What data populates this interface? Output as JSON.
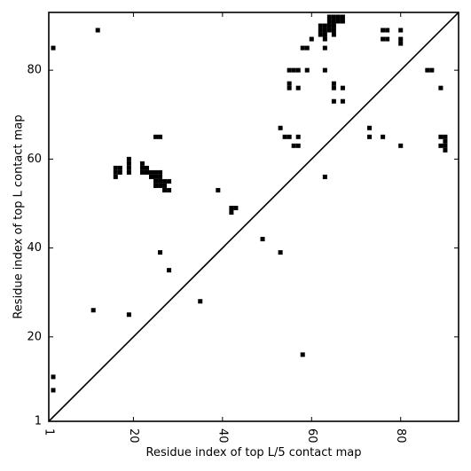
{
  "chart_data": {
    "type": "heatmap",
    "title": "",
    "xlabel": "Residue index of top L/5 contact map",
    "ylabel": "Residue index of top L contact map",
    "xlim": [
      1,
      93
    ],
    "ylim": [
      1,
      93
    ],
    "x_ticks": [
      1,
      20,
      40,
      60,
      80
    ],
    "y_ticks": [
      1,
      20,
      40,
      60,
      80
    ],
    "x_tick_labels": [
      "1",
      "20",
      "40",
      "60",
      "80"
    ],
    "y_tick_labels": [
      "1",
      "20",
      "40",
      "60",
      "80"
    ],
    "x_tick_rotation": 90,
    "diagonal_line": true,
    "colors": {
      "contact": "#000000",
      "background": "#ffffff",
      "frame": "#000000"
    },
    "lower_triangle_points": [
      [
        11,
        26
      ],
      [
        19,
        25
      ],
      [
        35,
        28
      ],
      [
        53,
        39
      ],
      [
        58,
        16
      ],
      [
        49,
        42
      ],
      [
        28,
        35
      ],
      [
        26,
        39
      ],
      [
        42,
        48
      ],
      [
        42,
        49
      ],
      [
        43,
        49
      ],
      [
        39,
        53
      ],
      [
        80,
        63
      ],
      [
        73,
        65
      ],
      [
        73,
        67
      ],
      [
        76,
        65
      ],
      [
        89,
        63
      ],
      [
        89,
        65
      ],
      [
        90,
        62
      ],
      [
        90,
        63
      ],
      [
        90,
        64
      ],
      [
        90,
        65
      ]
    ],
    "upper_triangle_points": [
      [
        2,
        85
      ],
      [
        12,
        89
      ],
      [
        2,
        11
      ],
      [
        2,
        8
      ],
      [
        16,
        56
      ],
      [
        16,
        57
      ],
      [
        16,
        58
      ],
      [
        17,
        57
      ],
      [
        17,
        58
      ],
      [
        19,
        57
      ],
      [
        19,
        58
      ],
      [
        19,
        59
      ],
      [
        19,
        60
      ],
      [
        22,
        57
      ],
      [
        22,
        58
      ],
      [
        22,
        59
      ],
      [
        23,
        57
      ],
      [
        23,
        58
      ],
      [
        24,
        56
      ],
      [
        24,
        57
      ],
      [
        25,
        54
      ],
      [
        25,
        55
      ],
      [
        25,
        56
      ],
      [
        25,
        57
      ],
      [
        25,
        65
      ],
      [
        26,
        54
      ],
      [
        26,
        55
      ],
      [
        26,
        56
      ],
      [
        26,
        57
      ],
      [
        26,
        65
      ],
      [
        27,
        53
      ],
      [
        27,
        54
      ],
      [
        27,
        55
      ],
      [
        28,
        53
      ],
      [
        28,
        55
      ],
      [
        53,
        67
      ],
      [
        54,
        65
      ],
      [
        55,
        65
      ],
      [
        55,
        76
      ],
      [
        55,
        77
      ],
      [
        55,
        80
      ],
      [
        56,
        63
      ],
      [
        56,
        80
      ],
      [
        57,
        63
      ],
      [
        57,
        65
      ],
      [
        57,
        76
      ],
      [
        57,
        80
      ],
      [
        58,
        85
      ],
      [
        59,
        80
      ],
      [
        59,
        85
      ],
      [
        60,
        87
      ],
      [
        62,
        88
      ],
      [
        62,
        89
      ],
      [
        62,
        90
      ],
      [
        63,
        56
      ],
      [
        63,
        80
      ],
      [
        63,
        85
      ],
      [
        63,
        87
      ],
      [
        63,
        88
      ],
      [
        63,
        89
      ],
      [
        63,
        90
      ],
      [
        64,
        89
      ],
      [
        64,
        90
      ],
      [
        64,
        91
      ],
      [
        64,
        92
      ],
      [
        65,
        73
      ],
      [
        65,
        76
      ],
      [
        65,
        77
      ],
      [
        65,
        88
      ],
      [
        65,
        89
      ],
      [
        65,
        90
      ],
      [
        65,
        91
      ],
      [
        65,
        92
      ],
      [
        66,
        91
      ],
      [
        66,
        92
      ],
      [
        67,
        73
      ],
      [
        67,
        76
      ],
      [
        67,
        91
      ],
      [
        67,
        92
      ],
      [
        76,
        87
      ],
      [
        76,
        89
      ],
      [
        77,
        87
      ],
      [
        77,
        89
      ],
      [
        80,
        86
      ],
      [
        80,
        87
      ],
      [
        80,
        89
      ],
      [
        86,
        80
      ],
      [
        87,
        80
      ],
      [
        89,
        76
      ]
    ]
  }
}
